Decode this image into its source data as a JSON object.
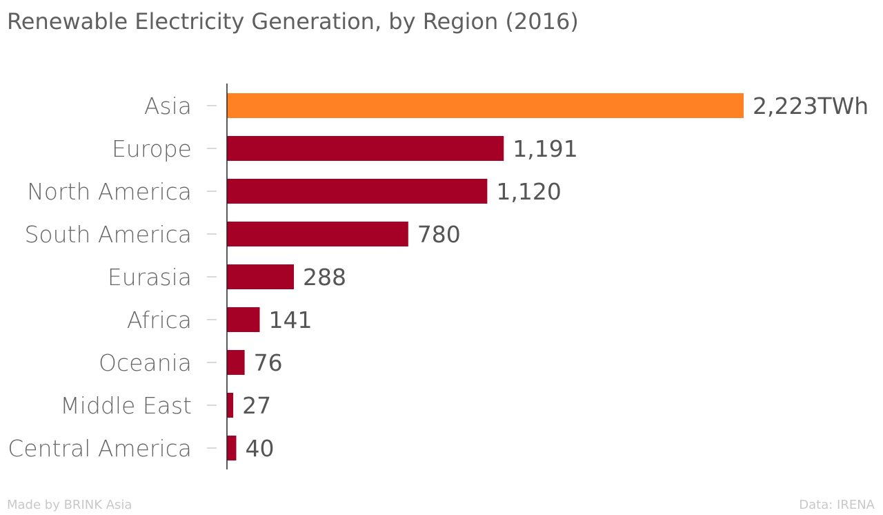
{
  "title": "Renewable Electricity Generation, by Region (2016)",
  "footer": {
    "made_by": "Made by BRINK Asia",
    "source": "Data: IRENA"
  },
  "colors": {
    "highlight": "#ff8124",
    "bar": "#a50026",
    "axis": "#222222",
    "tick": "#cccccc"
  },
  "chart_data": {
    "type": "bar",
    "orientation": "horizontal",
    "title": "Renewable Electricity Generation, by Region (2016)",
    "categories": [
      "Asia",
      "Europe",
      "North America",
      "South America",
      "Eurasia",
      "Africa",
      "Oceania",
      "Middle East",
      "Central America"
    ],
    "values": [
      2223,
      1191,
      1120,
      780,
      288,
      141,
      76,
      27,
      40
    ],
    "value_labels": [
      "2,223TWh",
      "1,191",
      "1,120",
      "780",
      "288",
      "141",
      "76",
      "27",
      "40"
    ],
    "unit": "TWh",
    "highlight_index": 0,
    "xlim": [
      0,
      2223
    ],
    "grid": false,
    "legend": "none"
  }
}
